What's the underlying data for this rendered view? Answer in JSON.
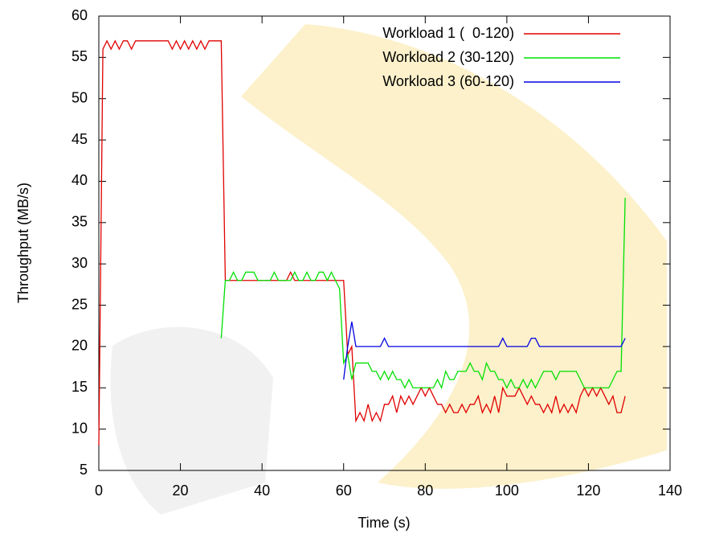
{
  "chart_data": {
    "type": "line",
    "xlabel": "Time (s)",
    "ylabel": "Throughput (MB/s)",
    "xlim": [
      0,
      140
    ],
    "ylim": [
      5,
      60
    ],
    "xticks": [
      0,
      20,
      40,
      60,
      80,
      100,
      120,
      140
    ],
    "yticks": [
      5,
      10,
      15,
      20,
      25,
      30,
      35,
      40,
      45,
      50,
      55,
      60
    ],
    "legend": "top-right",
    "x": [
      0,
      1,
      2,
      3,
      4,
      5,
      6,
      7,
      8,
      9,
      10,
      11,
      12,
      13,
      14,
      15,
      16,
      17,
      18,
      19,
      20,
      21,
      22,
      23,
      24,
      25,
      26,
      27,
      28,
      29,
      30,
      31,
      32,
      33,
      34,
      35,
      36,
      37,
      38,
      39,
      40,
      41,
      42,
      43,
      44,
      45,
      46,
      47,
      48,
      49,
      50,
      51,
      52,
      53,
      54,
      55,
      56,
      57,
      58,
      59,
      60,
      61,
      62,
      63,
      64,
      65,
      66,
      67,
      68,
      69,
      70,
      71,
      72,
      73,
      74,
      75,
      76,
      77,
      78,
      79,
      80,
      81,
      82,
      83,
      84,
      85,
      86,
      87,
      88,
      89,
      90,
      91,
      92,
      93,
      94,
      95,
      96,
      97,
      98,
      99,
      100,
      101,
      102,
      103,
      104,
      105,
      106,
      107,
      108,
      109,
      110,
      111,
      112,
      113,
      114,
      115,
      116,
      117,
      118,
      119,
      120,
      121,
      122,
      123,
      124,
      125,
      126,
      127,
      128,
      129
    ],
    "series": [
      {
        "name": "Workload 1 (  0-120)",
        "color": "#e00000",
        "values": [
          8,
          56,
          57,
          56,
          57,
          56,
          57,
          57,
          56,
          57,
          57,
          57,
          57,
          57,
          57,
          57,
          57,
          57,
          56,
          57,
          56,
          57,
          56,
          57,
          56,
          57,
          56,
          57,
          57,
          57,
          57,
          28,
          28,
          28,
          28,
          28,
          28,
          28,
          28,
          28,
          28,
          28,
          28,
          28,
          28,
          28,
          28,
          29,
          28,
          28,
          28,
          28,
          28,
          28,
          28,
          28,
          28,
          28,
          28,
          28,
          28,
          19,
          20,
          11,
          12,
          11,
          13,
          11,
          12,
          11,
          13,
          13,
          14,
          12,
          14,
          13,
          14,
          13,
          14,
          15,
          14,
          15,
          14,
          13,
          13,
          12,
          13,
          12,
          12,
          13,
          12,
          13,
          13,
          14,
          12,
          13,
          12,
          14,
          12,
          15,
          14,
          14,
          14,
          15,
          14,
          13,
          14,
          13,
          13,
          12,
          13,
          12,
          14,
          12,
          13,
          12,
          13,
          12,
          14,
          15,
          14,
          15,
          14,
          15,
          14,
          13,
          14,
          12,
          12,
          14
        ]
      },
      {
        "name": "Workload 2 (30-120)",
        "color": "#00e000",
        "values": [
          null,
          null,
          null,
          null,
          null,
          null,
          null,
          null,
          null,
          null,
          null,
          null,
          null,
          null,
          null,
          null,
          null,
          null,
          null,
          null,
          null,
          null,
          null,
          null,
          null,
          null,
          null,
          null,
          null,
          null,
          21,
          28,
          28,
          29,
          28,
          28,
          29,
          29,
          29,
          28,
          28,
          28,
          28,
          29,
          28,
          28,
          28,
          28,
          29,
          28,
          28,
          29,
          28,
          28,
          29,
          29,
          28,
          29,
          28,
          27,
          18,
          19,
          16,
          18,
          18,
          18,
          18,
          17,
          17,
          16,
          17,
          16,
          17,
          16,
          16,
          15,
          16,
          15,
          15,
          15,
          15,
          15,
          15,
          16,
          15,
          17,
          16,
          16,
          17,
          17,
          17,
          18,
          17,
          17,
          16,
          18,
          17,
          17,
          16,
          16,
          15,
          16,
          15,
          15,
          16,
          15,
          16,
          15,
          16,
          17,
          17,
          17,
          16,
          17,
          17,
          17,
          17,
          17,
          16,
          15,
          15,
          15,
          15,
          15,
          15,
          15,
          16,
          17,
          17,
          38
        ]
      },
      {
        "name": "Workload 3 (60-120)",
        "color": "#0000e0",
        "values": [
          null,
          null,
          null,
          null,
          null,
          null,
          null,
          null,
          null,
          null,
          null,
          null,
          null,
          null,
          null,
          null,
          null,
          null,
          null,
          null,
          null,
          null,
          null,
          null,
          null,
          null,
          null,
          null,
          null,
          null,
          null,
          null,
          null,
          null,
          null,
          null,
          null,
          null,
          null,
          null,
          null,
          null,
          null,
          null,
          null,
          null,
          null,
          null,
          null,
          null,
          null,
          null,
          null,
          null,
          null,
          null,
          null,
          null,
          null,
          null,
          16,
          20,
          23,
          20,
          20,
          20,
          20,
          20,
          20,
          20,
          21,
          20,
          20,
          20,
          20,
          20,
          20,
          20,
          20,
          20,
          20,
          20,
          20,
          20,
          20,
          20,
          20,
          20,
          20,
          20,
          20,
          20,
          20,
          20,
          20,
          20,
          20,
          20,
          20,
          21,
          20,
          20,
          20,
          20,
          20,
          20,
          21,
          21,
          20,
          20,
          20,
          20,
          20,
          20,
          20,
          20,
          20,
          20,
          20,
          20,
          20,
          20,
          20,
          20,
          20,
          20,
          20,
          20,
          20,
          21
        ]
      }
    ]
  }
}
